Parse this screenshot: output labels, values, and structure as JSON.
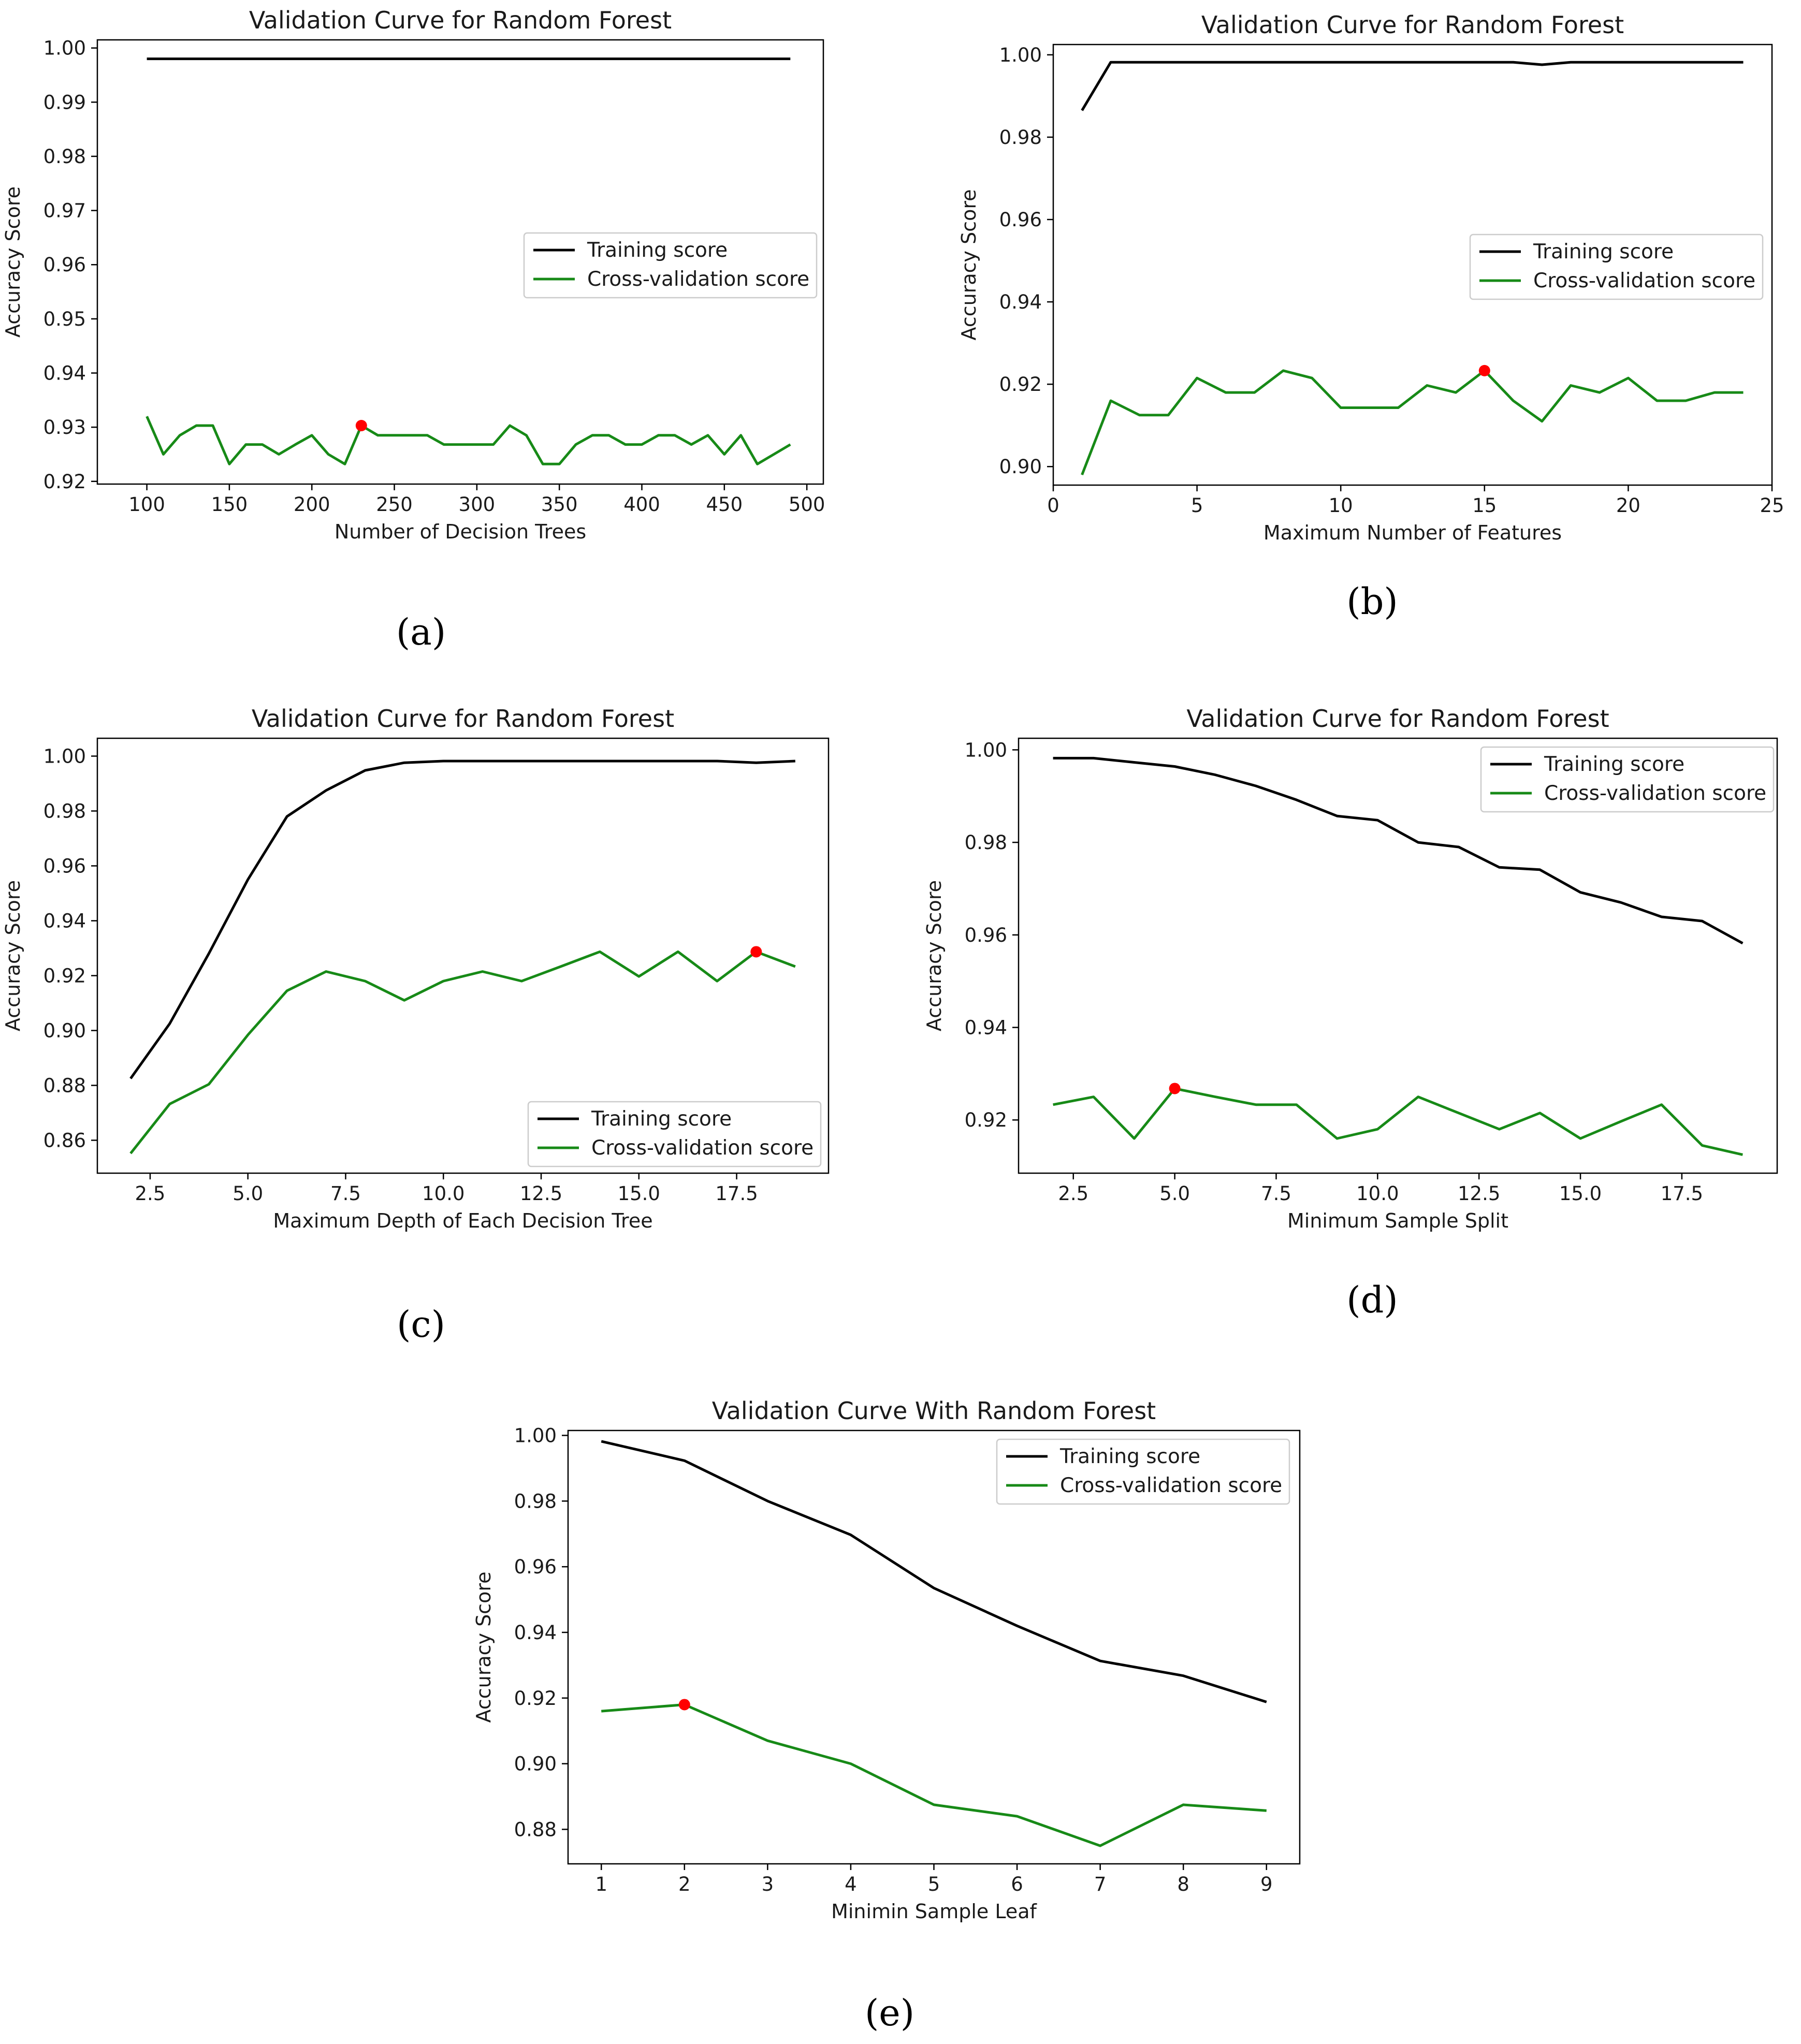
{
  "chart_data": [
    {
      "id": "a",
      "type": "line",
      "title": "Validation Curve for Random Forest",
      "xlabel": "Number of Decision Trees",
      "ylabel": "Accuracy Score",
      "caption": "(a)",
      "xlim": [
        70,
        510
      ],
      "ylim": [
        0.9195,
        1.0015
      ],
      "xticks": [
        100,
        150,
        200,
        250,
        300,
        350,
        400,
        450,
        500
      ],
      "yticks": [
        0.92,
        0.93,
        0.94,
        0.95,
        0.96,
        0.97,
        0.98,
        0.99,
        1.0
      ],
      "ytick_decimals": 2,
      "legend_position": "center-right",
      "x": [
        100,
        110,
        120,
        130,
        140,
        150,
        160,
        170,
        180,
        190,
        200,
        210,
        220,
        230,
        240,
        250,
        260,
        270,
        280,
        290,
        300,
        310,
        320,
        330,
        340,
        350,
        360,
        370,
        380,
        390,
        400,
        410,
        420,
        430,
        440,
        450,
        460,
        470,
        480,
        490
      ],
      "series": [
        {
          "name": "Training score",
          "color": "#000000",
          "values": [
            0.998,
            0.998,
            0.998,
            0.998,
            0.998,
            0.998,
            0.998,
            0.998,
            0.998,
            0.998,
            0.998,
            0.998,
            0.998,
            0.998,
            0.998,
            0.998,
            0.998,
            0.998,
            0.998,
            0.998,
            0.998,
            0.998,
            0.998,
            0.998,
            0.998,
            0.998,
            0.998,
            0.998,
            0.998,
            0.998,
            0.998,
            0.998,
            0.998,
            0.998,
            0.998,
            0.998,
            0.998,
            0.998,
            0.998,
            0.998
          ]
        },
        {
          "name": "Cross-validation score",
          "color": "#178a17",
          "values": [
            0.932,
            0.925,
            0.9285,
            0.9303,
            0.9303,
            0.9232,
            0.9268,
            0.9268,
            0.925,
            0.9268,
            0.9285,
            0.925,
            0.9232,
            0.9303,
            0.9285,
            0.9285,
            0.9285,
            0.9285,
            0.9268,
            0.9268,
            0.9268,
            0.9268,
            0.9303,
            0.9285,
            0.9232,
            0.9232,
            0.9268,
            0.9285,
            0.9285,
            0.9268,
            0.9268,
            0.9285,
            0.9285,
            0.9268,
            0.9285,
            0.925,
            0.9285,
            0.9232,
            0.925,
            0.9268
          ]
        }
      ],
      "best_point": {
        "x": 230,
        "y": 0.9303,
        "color": "#ff0000"
      }
    },
    {
      "id": "b",
      "type": "line",
      "title": "Validation Curve for Random Forest",
      "xlabel": "Maximum Number of Features",
      "ylabel": "Accuracy Score",
      "caption": "(b)",
      "xlim": [
        0,
        25
      ],
      "ylim": [
        0.8955,
        1.0025
      ],
      "xticks": [
        0,
        5,
        10,
        15,
        20,
        25
      ],
      "yticks": [
        0.9,
        0.92,
        0.94,
        0.96,
        0.98,
        1.0
      ],
      "ytick_decimals": 2,
      "legend_position": "center-right",
      "x": [
        1,
        2,
        3,
        4,
        5,
        6,
        7,
        8,
        9,
        10,
        11,
        12,
        13,
        14,
        15,
        16,
        17,
        18,
        19,
        20,
        21,
        22,
        23,
        24
      ],
      "series": [
        {
          "name": "Training score",
          "color": "#000000",
          "values": [
            0.9865,
            0.9982,
            0.9982,
            0.9982,
            0.9982,
            0.9982,
            0.9982,
            0.9982,
            0.9982,
            0.9982,
            0.9982,
            0.9982,
            0.9982,
            0.9982,
            0.9982,
            0.9982,
            0.9976,
            0.9982,
            0.9982,
            0.9982,
            0.9982,
            0.9982,
            0.9982,
            0.9982
          ]
        },
        {
          "name": "Cross-validation score",
          "color": "#178a17",
          "values": [
            0.898,
            0.916,
            0.9125,
            0.9125,
            0.9215,
            0.918,
            0.918,
            0.9233,
            0.9215,
            0.9143,
            0.9143,
            0.9143,
            0.9197,
            0.918,
            0.9233,
            0.916,
            0.911,
            0.9197,
            0.918,
            0.9215,
            0.916,
            0.916,
            0.918,
            0.918
          ]
        }
      ],
      "best_point": {
        "x": 15,
        "y": 0.9233,
        "color": "#ff0000"
      }
    },
    {
      "id": "c",
      "type": "line",
      "title": "Validation Curve for Random Forest",
      "xlabel": "Maximum Depth of Each Decision Tree",
      "ylabel": "Accuracy Score",
      "caption": "(c)",
      "xlim": [
        1.15,
        19.85
      ],
      "ylim": [
        0.848,
        1.0065
      ],
      "xticks": [
        2.5,
        5.0,
        7.5,
        10.0,
        12.5,
        15.0,
        17.5
      ],
      "yticks": [
        0.86,
        0.88,
        0.9,
        0.92,
        0.94,
        0.96,
        0.98,
        1.0
      ],
      "xtick_decimals": 1,
      "ytick_decimals": 2,
      "legend_position": "lower-right",
      "x": [
        2,
        3,
        4,
        5,
        6,
        7,
        8,
        9,
        10,
        11,
        12,
        13,
        14,
        15,
        16,
        17,
        18,
        19
      ],
      "series": [
        {
          "name": "Training score",
          "color": "#000000",
          "values": [
            0.8825,
            0.9025,
            0.928,
            0.955,
            0.978,
            0.9875,
            0.9948,
            0.9976,
            0.9982,
            0.9982,
            0.9982,
            0.9982,
            0.9982,
            0.9982,
            0.9982,
            0.9982,
            0.9976,
            0.9982
          ]
        },
        {
          "name": "Cross-validation score",
          "color": "#178a17",
          "values": [
            0.8552,
            0.8732,
            0.8804,
            0.8984,
            0.9145,
            0.9215,
            0.918,
            0.911,
            0.918,
            0.9215,
            0.918,
            0.9233,
            0.9287,
            0.9197,
            0.9287,
            0.918,
            0.9287,
            0.9233
          ]
        }
      ],
      "best_point": {
        "x": 18,
        "y": 0.9287,
        "color": "#ff0000"
      }
    },
    {
      "id": "d",
      "type": "line",
      "title": "Validation Curve for Random Forest",
      "xlabel": "Minimum Sample Split",
      "ylabel": "Accuracy Score",
      "caption": "(d)",
      "xlim": [
        1.15,
        19.85
      ],
      "ylim": [
        0.9085,
        1.0025
      ],
      "xticks": [
        2.5,
        5.0,
        7.5,
        10.0,
        12.5,
        15.0,
        17.5
      ],
      "yticks": [
        0.92,
        0.94,
        0.96,
        0.98,
        1.0
      ],
      "xtick_decimals": 1,
      "ytick_decimals": 2,
      "legend_position": "top-right",
      "x": [
        2,
        3,
        4,
        5,
        6,
        7,
        8,
        9,
        10,
        11,
        12,
        13,
        14,
        15,
        16,
        17,
        18,
        19
      ],
      "series": [
        {
          "name": "Training score",
          "color": "#000000",
          "values": [
            0.9982,
            0.9982,
            0.9973,
            0.9964,
            0.9946,
            0.9922,
            0.9892,
            0.9857,
            0.9848,
            0.98,
            0.979,
            0.9746,
            0.9741,
            0.9692,
            0.967,
            0.9639,
            0.963,
            0.9582
          ]
        },
        {
          "name": "Cross-validation score",
          "color": "#178a17",
          "values": [
            0.9233,
            0.925,
            0.916,
            0.9268,
            0.925,
            0.9233,
            0.9233,
            0.916,
            0.918,
            0.925,
            0.9215,
            0.918,
            0.9215,
            0.916,
            0.9197,
            0.9233,
            0.9145,
            0.9125
          ]
        }
      ],
      "best_point": {
        "x": 5,
        "y": 0.9268,
        "color": "#ff0000"
      }
    },
    {
      "id": "e",
      "type": "line",
      "title": "Validation Curve With Random Forest",
      "xlabel": "Minimin Sample Leaf",
      "ylabel": "Accuracy Score",
      "caption": "(e)",
      "xlim": [
        0.6,
        9.4
      ],
      "ylim": [
        0.8695,
        1.0015
      ],
      "xticks": [
        1,
        2,
        3,
        4,
        5,
        6,
        7,
        8,
        9
      ],
      "yticks": [
        0.88,
        0.9,
        0.92,
        0.94,
        0.96,
        0.98,
        1.0
      ],
      "ytick_decimals": 2,
      "legend_position": "top-right",
      "x": [
        1,
        2,
        3,
        4,
        5,
        6,
        7,
        8,
        9
      ],
      "series": [
        {
          "name": "Training score",
          "color": "#000000",
          "values": [
            0.9982,
            0.9923,
            0.98,
            0.9697,
            0.9535,
            0.942,
            0.9313,
            0.9268,
            0.9188
          ]
        },
        {
          "name": "Cross-validation score",
          "color": "#178a17",
          "values": [
            0.916,
            0.918,
            0.907,
            0.9,
            0.8875,
            0.884,
            0.875,
            0.8875,
            0.8857
          ]
        }
      ],
      "best_point": {
        "x": 2,
        "y": 0.918,
        "color": "#ff0000"
      }
    }
  ]
}
